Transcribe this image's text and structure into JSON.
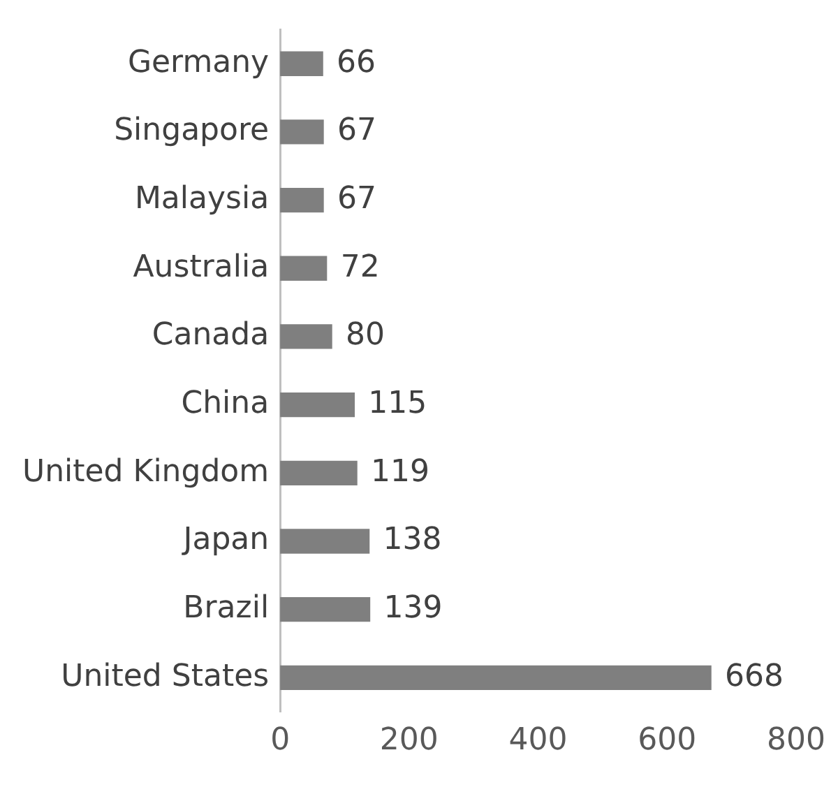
{
  "chart_data": {
    "type": "bar",
    "orientation": "horizontal",
    "categories": [
      "Germany",
      "Singapore",
      "Malaysia",
      "Australia",
      "Canada",
      "China",
      "United Kingdom",
      "Japan",
      "Brazil",
      "United States"
    ],
    "values": [
      66,
      67,
      67,
      72,
      80,
      115,
      119,
      138,
      139,
      668
    ],
    "color": "#7f7f7f",
    "xlim": [
      0,
      800
    ],
    "xticks": [
      0,
      200,
      400,
      600,
      800
    ],
    "grid": false,
    "legend": false,
    "data_labels": true
  }
}
